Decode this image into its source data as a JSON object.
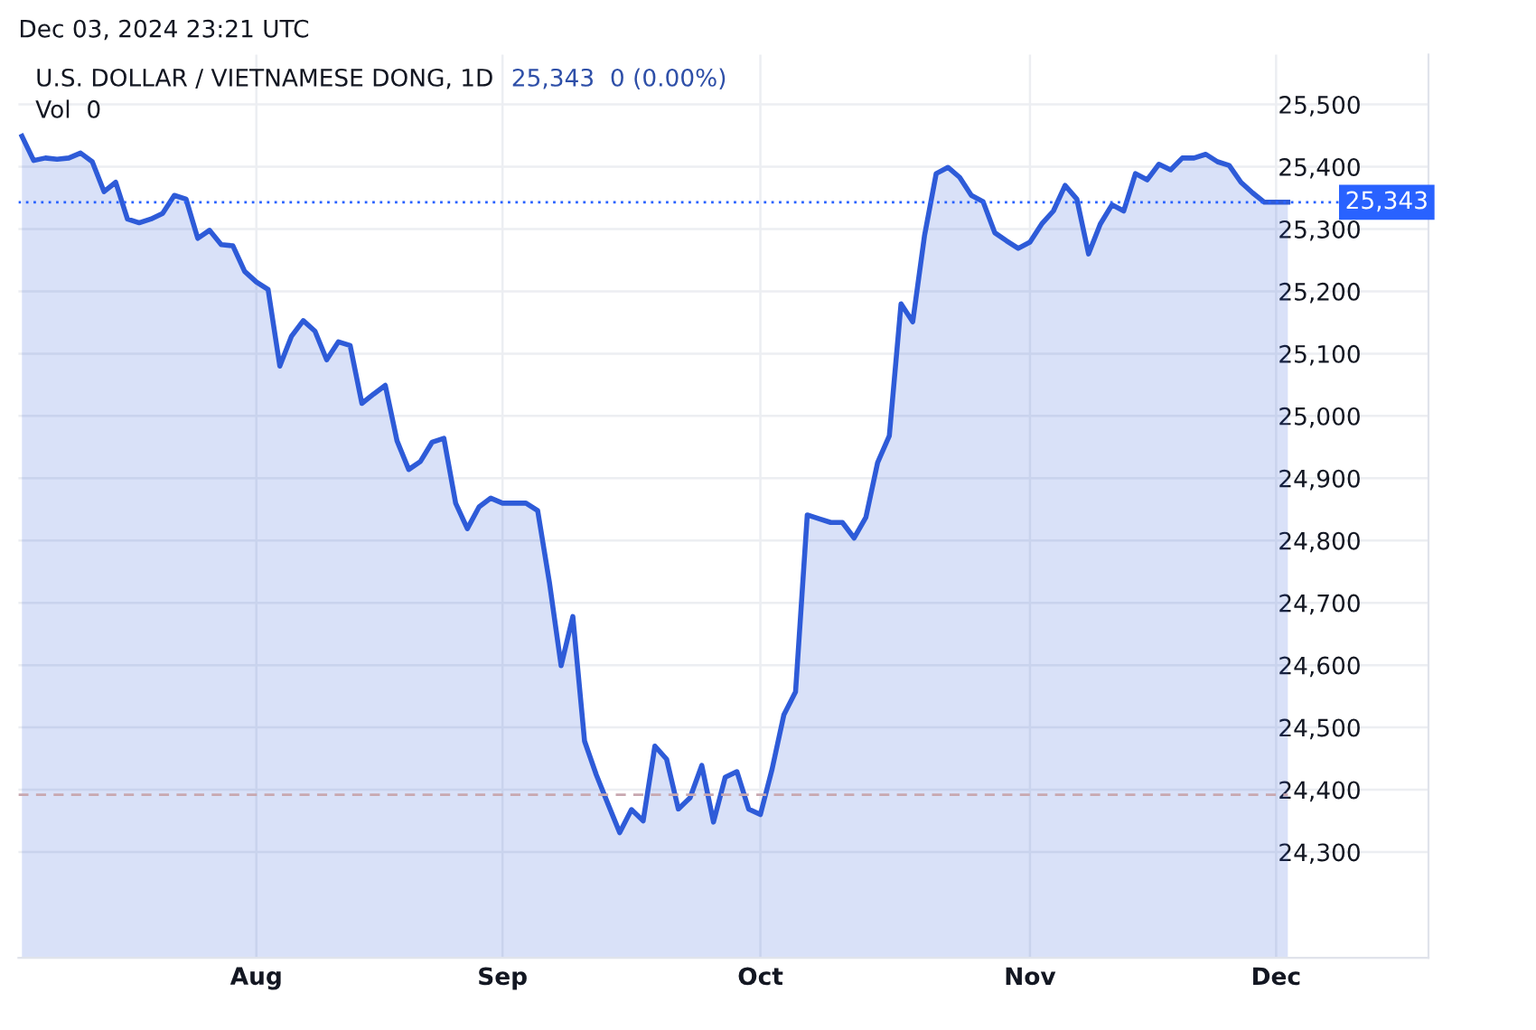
{
  "chart_data": {
    "type": "area",
    "title": "U.S. DOLLAR / VIETNAMESE DONG, 1D",
    "annotations": [
      "Dec 03, 2024 23:21 UTC",
      "25,343  0 (0.00%)",
      "Vol  0"
    ],
    "categories": [
      null,
      null,
      null,
      null,
      null,
      null,
      null,
      null,
      null,
      null,
      null,
      null,
      null,
      null,
      null,
      null,
      null,
      null,
      null,
      null,
      "Aug",
      null,
      null,
      null,
      null,
      null,
      null,
      null,
      null,
      null,
      null,
      null,
      null,
      null,
      null,
      null,
      null,
      null,
      null,
      null,
      null,
      "Sep",
      null,
      null,
      null,
      null,
      null,
      null,
      null,
      null,
      null,
      null,
      null,
      null,
      null,
      null,
      null,
      null,
      null,
      null,
      null,
      null,
      null,
      "Oct",
      null,
      null,
      null,
      null,
      null,
      null,
      null,
      null,
      null,
      null,
      null,
      null,
      null,
      null,
      null,
      null,
      null,
      null,
      null,
      null,
      null,
      null,
      "Nov",
      null,
      null,
      null,
      null,
      null,
      null,
      null,
      null,
      null,
      null,
      null,
      null,
      null,
      null,
      null,
      null,
      null,
      null,
      null,
      null,
      "Dec",
      null
    ],
    "series": [
      {
        "color": "#2e5bd8",
        "values": [
          25449,
          25410,
          25414,
          25412,
          25414,
          25422,
          25408,
          25360,
          25375,
          25316,
          25310,
          25316,
          25325,
          25354,
          25348,
          25285,
          25298,
          25275,
          25273,
          25232,
          25215,
          25203,
          25080,
          25128,
          25153,
          25136,
          25090,
          25119,
          25113,
          25020,
          25035,
          25049,
          24960,
          24914,
          24927,
          24958,
          24964,
          24860,
          24819,
          24854,
          24868,
          24860,
          24860,
          24860,
          24848,
          24733,
          24599,
          24678,
          24478,
          24424,
          24377,
          24331,
          24368,
          24350,
          24470,
          24449,
          24369,
          24387,
          24439,
          24348,
          24420,
          24429,
          24369,
          24360,
          24433,
          24520,
          24557,
          24841,
          24835,
          24829,
          24829,
          24804,
          24837,
          24925,
          24968,
          25180,
          25151,
          25289,
          25389,
          25399,
          25383,
          25354,
          25344,
          25294,
          25281,
          25269,
          25279,
          25308,
          25329,
          25370,
          25348,
          25260,
          25308,
          25339,
          25329,
          25389,
          25379,
          25404,
          25395,
          25414,
          25414,
          25420,
          25408,
          25402,
          25375,
          25358,
          25343,
          25343,
          25343
        ]
      }
    ],
    "ylim": [
      24130,
      25580
    ],
    "yticks": [
      {
        "value": 24300,
        "label": "24,300"
      },
      {
        "value": 24400,
        "label": "24,400"
      },
      {
        "value": 24500,
        "label": "24,500"
      },
      {
        "value": 24600,
        "label": "24,600"
      },
      {
        "value": 24700,
        "label": "24,700"
      },
      {
        "value": 24800,
        "label": "24,800"
      },
      {
        "value": 24900,
        "label": "24,900"
      },
      {
        "value": 25000,
        "label": "25,000"
      },
      {
        "value": 25100,
        "label": "25,100"
      },
      {
        "value": 25200,
        "label": "25,200"
      },
      {
        "value": 25300,
        "label": "25,300"
      },
      {
        "value": 25400,
        "label": "25,400"
      },
      {
        "value": 25500,
        "label": "25,500"
      }
    ],
    "ref_lines": [
      {
        "axis": "y",
        "value": 25343,
        "label": "25,343",
        "color": "#2962ff",
        "line_style": "dotted"
      },
      {
        "axis": "y",
        "value": 24392,
        "color": "#c8a8b0",
        "line_style": "dashed"
      }
    ],
    "grid": true,
    "legend": false
  }
}
